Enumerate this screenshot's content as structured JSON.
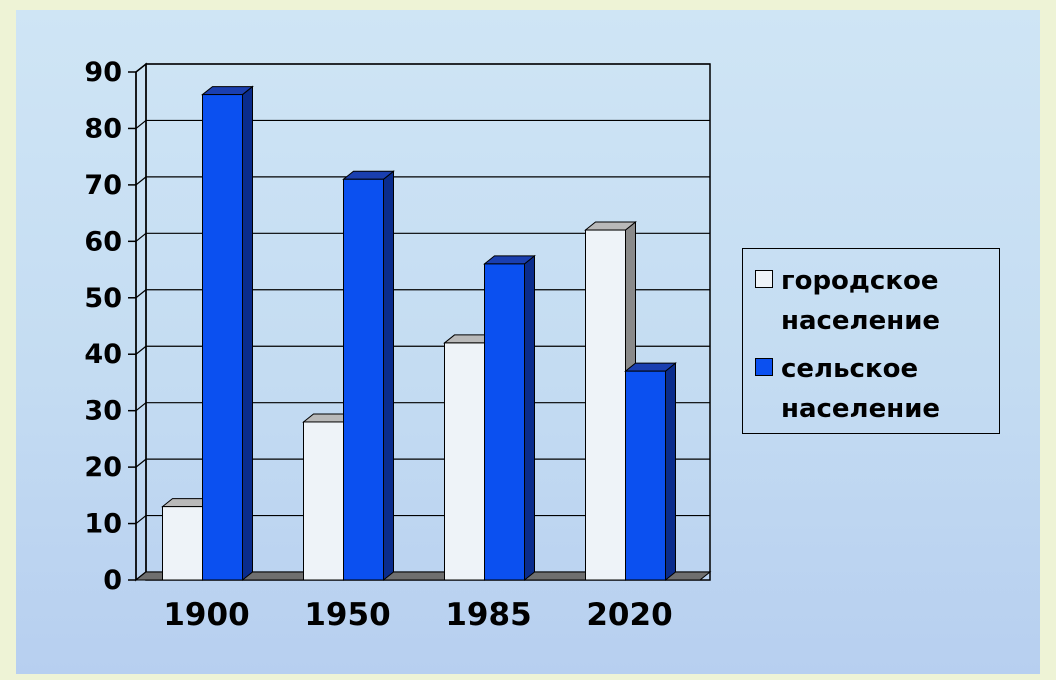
{
  "chart_data": {
    "type": "bar",
    "categories": [
      "1900",
      "1950",
      "1985",
      "2020"
    ],
    "series": [
      {
        "name": "городское население",
        "values": [
          13,
          28,
          42,
          62
        ],
        "color": "#eef3f8"
      },
      {
        "name": "сельское население",
        "values": [
          86,
          71,
          56,
          37
        ],
        "color": "#0b50f0"
      }
    ],
    "ylim": [
      0,
      90
    ],
    "yticks": [
      "0",
      "10",
      "20",
      "30",
      "40",
      "50",
      "60",
      "70",
      "80",
      "90"
    ],
    "grid": true,
    "legend_position": "right",
    "style": "3d-clustered-column"
  },
  "legend": {
    "urban_label": "городское\nнаселение",
    "rural_label": "сельское\nнаселение"
  }
}
